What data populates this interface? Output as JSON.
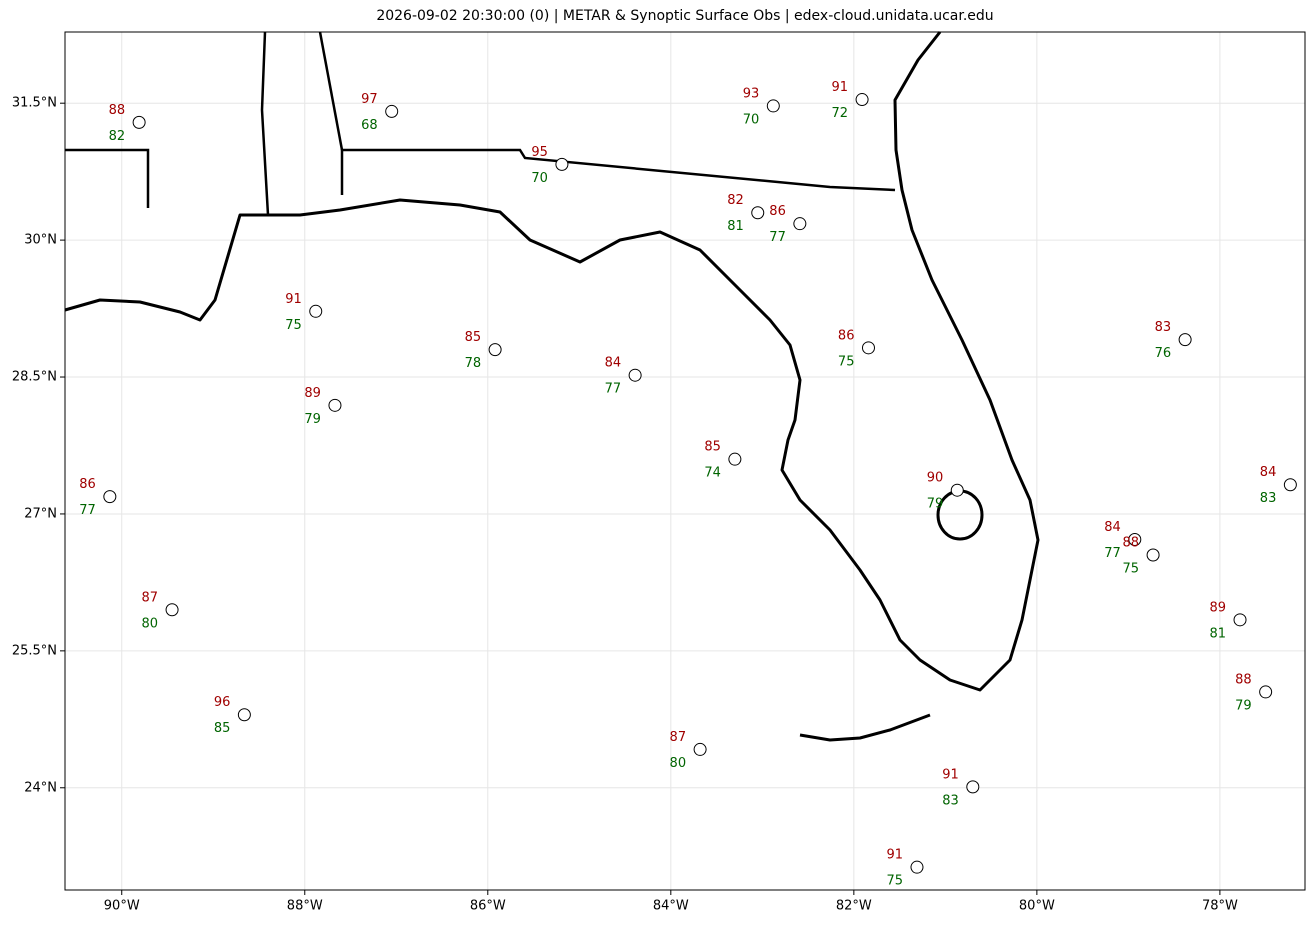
{
  "title": "2026-09-02 20:30:00 (0) | METAR & Synoptic Surface Obs | edex-cloud.unidata.ucar.edu",
  "map": {
    "xlim": [
      -90.62,
      -77.07
    ],
    "ylim": [
      22.88,
      32.28
    ],
    "xticks": [
      {
        "value": -90,
        "label": "90°W"
      },
      {
        "value": -88,
        "label": "88°W"
      },
      {
        "value": -86,
        "label": "86°W"
      },
      {
        "value": -84,
        "label": "84°W"
      },
      {
        "value": -82,
        "label": "82°W"
      },
      {
        "value": -80,
        "label": "80°W"
      },
      {
        "value": -78,
        "label": "78°W"
      }
    ],
    "yticks": [
      {
        "value": 24,
        "label": "24°N"
      },
      {
        "value": 25.5,
        "label": "25.5°N"
      },
      {
        "value": 27,
        "label": "27°N"
      },
      {
        "value": 28.5,
        "label": "28.5°N"
      },
      {
        "value": 30,
        "label": "30°N"
      },
      {
        "value": 31.5,
        "label": "31.5°N"
      }
    ],
    "grid": true,
    "temp_color": "#a00000",
    "dew_color": "#006400",
    "stations": [
      {
        "lon": -90.13,
        "lat": 27.19,
        "temp": 86,
        "dew": 77
      },
      {
        "lon": -87.88,
        "lat": 29.22,
        "temp": 91,
        "dew": 75
      },
      {
        "lon": -89.45,
        "lat": 25.95,
        "temp": 87,
        "dew": 80
      },
      {
        "lon": -88.66,
        "lat": 24.8,
        "temp": 96,
        "dew": 85
      },
      {
        "lon": -87.67,
        "lat": 28.19,
        "temp": 89,
        "dew": 79
      },
      {
        "lon": -85.92,
        "lat": 28.8,
        "temp": 85,
        "dew": 78
      },
      {
        "lon": -84.39,
        "lat": 28.52,
        "temp": 84,
        "dew": 77
      },
      {
        "lon": -83.3,
        "lat": 27.6,
        "temp": 85,
        "dew": 74
      },
      {
        "lon": -83.68,
        "lat": 24.42,
        "temp": 87,
        "dew": 80
      },
      {
        "lon": -78.38,
        "lat": 28.91,
        "temp": 83,
        "dew": 76
      },
      {
        "lon": -77.23,
        "lat": 27.32,
        "temp": 84,
        "dew": 83
      },
      {
        "lon": -77.78,
        "lat": 25.84,
        "temp": 89,
        "dew": 81
      },
      {
        "lon": -77.5,
        "lat": 25.05,
        "temp": 88,
        "dew": 79
      },
      {
        "lon": -78.93,
        "lat": 26.72,
        "temp": 84,
        "dew": 77
      },
      {
        "lon": -78.73,
        "lat": 26.55,
        "temp": 88,
        "dew": 75
      },
      {
        "lon": -81.31,
        "lat": 23.13,
        "temp": 91,
        "dew": 75
      },
      {
        "lon": -80.7,
        "lat": 24.01,
        "temp": 91,
        "dew": 83
      },
      {
        "lon": -80.87,
        "lat": 27.26,
        "temp": 90,
        "dew": 79
      },
      {
        "lon": -81.91,
        "lat": 31.54,
        "temp": 91,
        "dew": 72
      },
      {
        "lon": -87.05,
        "lat": 31.41,
        "temp": 97,
        "dew": 68
      },
      {
        "lon": -82.88,
        "lat": 31.47,
        "temp": 93,
        "dew": 70
      },
      {
        "lon": -85.19,
        "lat": 30.83,
        "temp": 95,
        "dew": 70
      },
      {
        "lon": -83.05,
        "lat": 30.3,
        "temp": 82,
        "dew": 81
      },
      {
        "lon": -82.59,
        "lat": 30.18,
        "temp": 86,
        "dew": 77
      },
      {
        "lon": -81.84,
        "lat": 28.82,
        "temp": 86,
        "dew": 75
      },
      {
        "lon": -89.81,
        "lat": 31.29,
        "temp": 88,
        "dew": 82
      }
    ]
  }
}
